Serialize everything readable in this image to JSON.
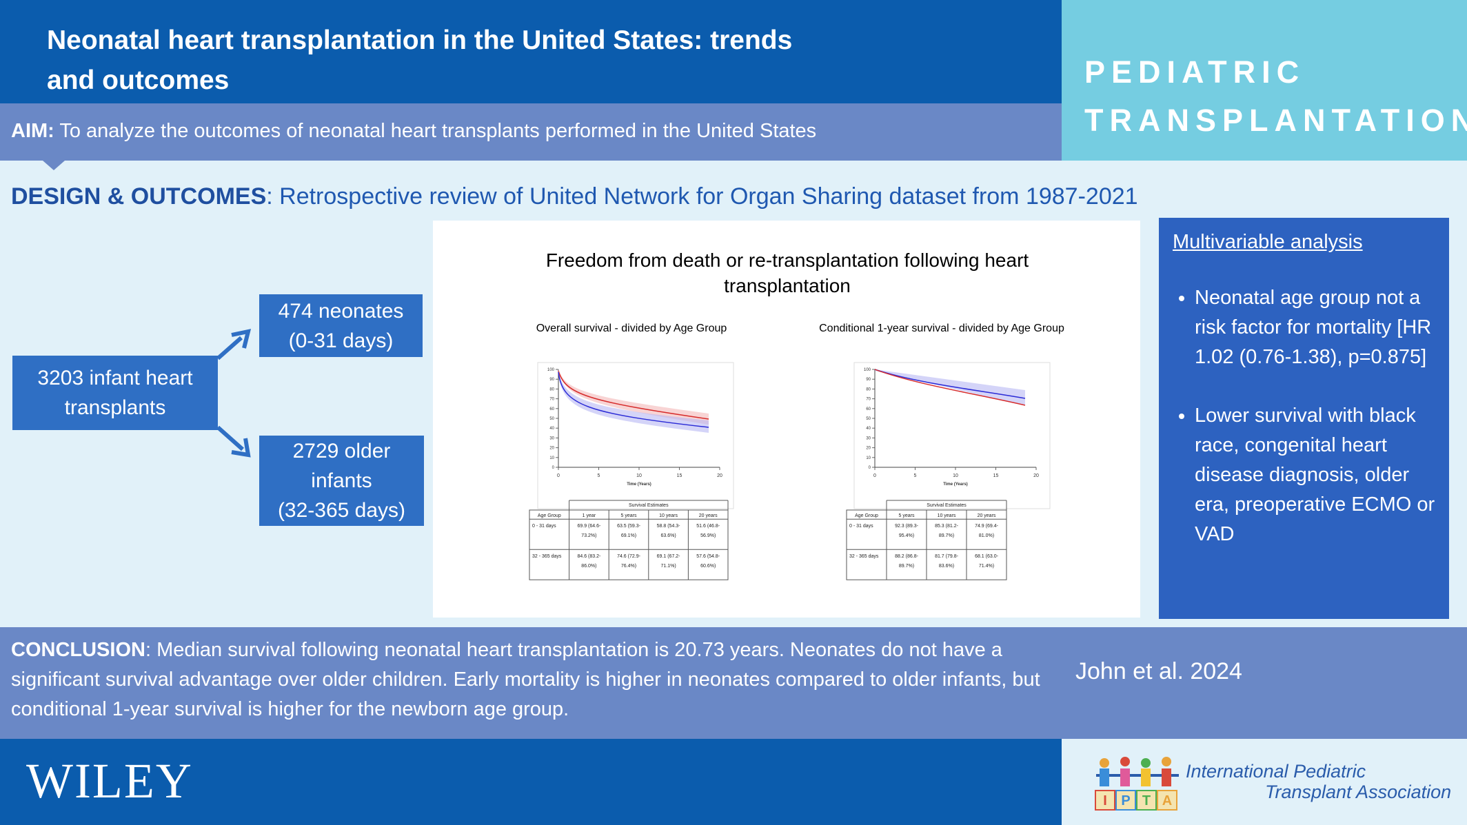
{
  "header": {
    "title_lines": [
      "Neonatal heart transplantation in the United States: trends",
      "and outcomes"
    ],
    "journal_lines": [
      "PEDIATRIC",
      "TRANSPLANTATION"
    ]
  },
  "aim": {
    "label": "AIM:",
    "text": " To analyze the outcomes of neonatal heart transplants performed in the United States"
  },
  "design": {
    "label": "DESIGN & OUTCOMES",
    "text": ": Retrospective review of United Network for Organ Sharing dataset from 1987-2021"
  },
  "flow": {
    "source": [
      "3203 infant heart",
      "transplants"
    ],
    "branches": [
      [
        "474 neonates",
        "(0-31 days)"
      ],
      [
        "2729 older",
        "infants",
        "(32-365 days)"
      ]
    ]
  },
  "figure": {
    "title_lines": [
      "Freedom from death or re-transplantation following heart",
      "transplantation"
    ],
    "plots": [
      {
        "subtitle": "Overall survival - divided by Age Group",
        "yticks": [
          0,
          10,
          20,
          30,
          40,
          50,
          60,
          70,
          80,
          90,
          100
        ],
        "xticks": [
          0,
          5,
          10,
          15,
          20
        ],
        "xlabel": "Time (Years)"
      },
      {
        "subtitle": "Conditional 1-year survival - divided by Age Group",
        "yticks": [
          0,
          10,
          20,
          30,
          40,
          50,
          60,
          70,
          80,
          90,
          100
        ],
        "xticks": [
          0,
          5,
          10,
          15,
          20
        ],
        "xlabel": "Time (Years)"
      }
    ],
    "tables": [
      {
        "caption": "Survival Estimates",
        "header": [
          "Age Group",
          "1 year",
          "5 years",
          "10 years",
          "20 years"
        ],
        "rows": [
          [
            "0 - 31 days",
            "69.9 (64.6-73.2%)",
            "63.5 (59.3-69.1%)",
            "58.8 (54.3-63.6%)",
            "51.6 (46.8-56.9%)"
          ],
          [
            "32 - 365 days",
            "84.6 (83.2-86.0%)",
            "74.6 (72.9-76.4%)",
            "69.1 (67.2-71.1%)",
            "57.6 (54.8-60.6%)"
          ]
        ]
      },
      {
        "caption": "Survival Estimates",
        "header": [
          "Age Group",
          "5 years",
          "10 years",
          "20 years"
        ],
        "rows": [
          [
            "0 - 31 days",
            "92.3 (89.3-95.4%)",
            "85.3 (81.2-89.7%)",
            "74.9 (69.4-81.0%)"
          ],
          [
            "32 - 365 days",
            "88.2 (86.8-89.7%)",
            "81.7 (79.8-83.6%)",
            "68.1 (63.0-71.4%)"
          ]
        ]
      }
    ]
  },
  "multivariable": {
    "heading": "Multivariable analysis",
    "bullets": [
      "Neonatal age group not a risk factor for mortality [HR 1.02 (0.76-1.38), p=0.875]",
      "Lower survival with black race, congenital heart disease diagnosis, older era, preoperative ECMO or VAD"
    ]
  },
  "conclusion": {
    "label": "CONCLUSION",
    "text": ": Median survival following neonatal heart transplantation is 20.73 years. Neonates do not have a significant survival advantage over older children. Early mortality is higher in neonates compared to older infants, but conditional 1-year survival is higher for the newborn age group."
  },
  "citation": "John et al. 2024",
  "footer": {
    "publisher": "WILEY",
    "association_lines": [
      "International Pediatric",
      "Transplant Association"
    ],
    "logo_letters": [
      "I",
      "P",
      "T",
      "A"
    ]
  }
}
